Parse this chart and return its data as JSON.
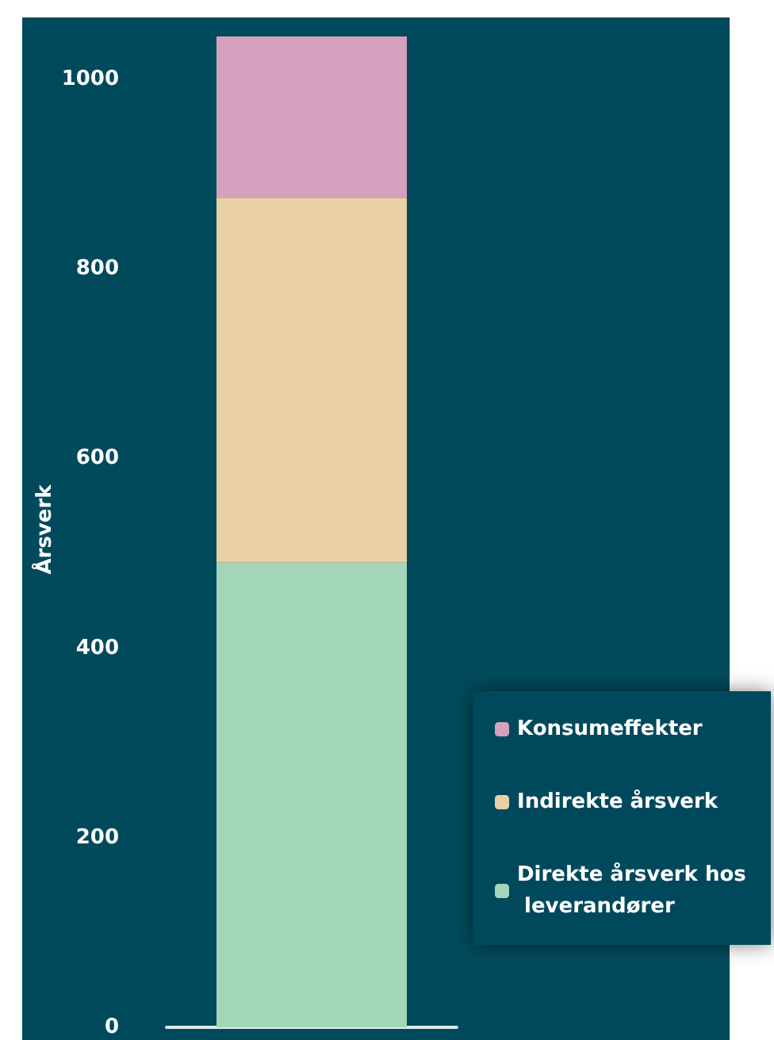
{
  "chart_data": {
    "type": "bar",
    "stacked": true,
    "ylabel": "Årsverk",
    "categories": [
      null
    ],
    "ylim": [
      0,
      1050
    ],
    "yticks": [
      0,
      200,
      400,
      600,
      800,
      1000
    ],
    "grid": false,
    "legend": "bottom right",
    "series": [
      {
        "name": "Direkte årsverk hos leverandører",
        "color": "#a3d6b9",
        "values": [
          490
        ]
      },
      {
        "name": "Indirekte årsverk",
        "color": "#ead0a5",
        "values": [
          385
        ]
      },
      {
        "name": "Konsumeffekter",
        "color": "#d6a1be",
        "values": [
          170
        ]
      }
    ]
  }
}
